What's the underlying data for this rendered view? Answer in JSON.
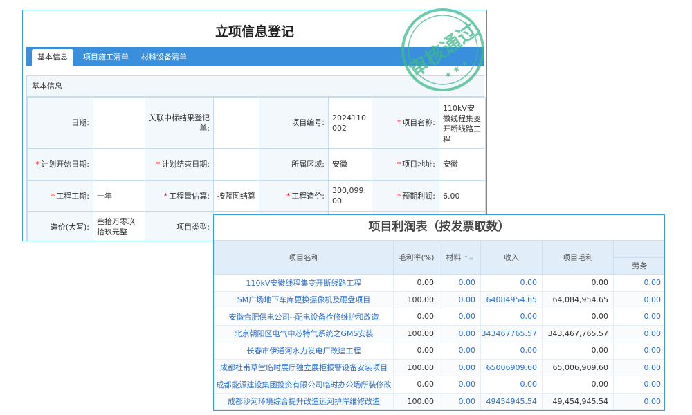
{
  "form": {
    "title": "立项信息登记",
    "tabs": [
      "基本信息",
      "项目施工清单",
      "材料设备清单"
    ],
    "section_title": "基本信息",
    "fields": {
      "date_label": "日期:",
      "date_value": "",
      "bid_label": "关联中标结果登记单:",
      "bid_value": "",
      "code_label": "项目编号:",
      "code_value": "2024110002",
      "name_label": "项目名称:",
      "name_value": "110kV安徽线程集变开断线路工程",
      "start_label": "计划开始日期:",
      "start_value": "",
      "end_label": "计划结束日期:",
      "end_value": "",
      "region_label": "所属区域:",
      "region_value": "安徽",
      "addr_label": "项目地址:",
      "addr_value": "安徽",
      "period_label": "工程工期:",
      "period_value": "一年",
      "estimate_label": "工程量估算:",
      "estimate_value": "按蓝图结算",
      "cost_label": "工程造价:",
      "cost_value": "300,099.00",
      "profit_label": "预期利润:",
      "profit_value": "6.00",
      "costcn_label": "造价(大写):",
      "costcn_value": "叁拾万零玖拾玖元整",
      "type_label": "项目类型:"
    },
    "required_mark": "*",
    "stamp": {
      "text": "审核通过",
      "color": "#3fb98a"
    }
  },
  "profit_table": {
    "title": "项目利润表（按发票取数）",
    "headers": [
      "项目名称",
      "毛利率(%)",
      "材料",
      "收入",
      "项目毛利",
      "劳务"
    ],
    "sort_icon": "sort-icon",
    "rows": [
      [
        "110kV安徽线程集变开断线路工程",
        "0.00",
        "0.00",
        "0.00",
        "0.00",
        "0.00"
      ],
      [
        "SM广场地下车库更换摄像机及硬盘项目",
        "100.00",
        "0.00",
        "64084954.65",
        "64,084,954.65",
        "0.00"
      ],
      [
        "安徽合肥供电公司--配电设备检修维护和改造",
        "0.00",
        "0.00",
        "0.00",
        "0.00",
        "0.00"
      ],
      [
        "北京朝阳区电气中芯特气系统之GMS安装",
        "100.00",
        "0.00",
        "343467765.57",
        "343,467,765.57",
        "0.00"
      ],
      [
        "长春市伊通河水力发电厂改建工程",
        "0.00",
        "0.00",
        "0.00",
        "0.00",
        "0.00"
      ],
      [
        "成都杜甫草堂临时展厅独立展柜报警设备安装项目",
        "100.00",
        "0.00",
        "65006909.60",
        "65,006,909.60",
        "0.00"
      ],
      [
        "成都能源建设集团投资有限公司临时办公场所装修改",
        "0.00",
        "0.00",
        "0.00",
        "0.00",
        "0.00"
      ],
      [
        "成都沙河环境综合提升改造运河护岸维修改造",
        "100.00",
        "0.00",
        "49454945.54",
        "49,454,945.54",
        "0.00"
      ]
    ]
  }
}
